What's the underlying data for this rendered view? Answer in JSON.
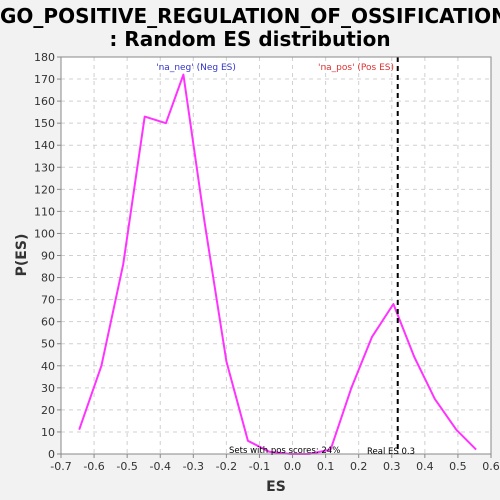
{
  "chart_data": {
    "type": "line",
    "title_line1": "GO_POSITIVE_REGULATION_OF_OSSIFICATION",
    "title_line2": ": Random ES distribution",
    "xlabel": "ES",
    "ylabel": "P(ES)",
    "xlim": [
      -0.7,
      0.6
    ],
    "ylim": [
      0,
      180
    ],
    "x_ticks": [
      "-0.7",
      "-0.6",
      "-0.5",
      "-0.4",
      "-0.3",
      "-0.2",
      "-0.1",
      "0.0",
      "0.1",
      "0.2",
      "0.3",
      "0.4",
      "0.5",
      "0.6"
    ],
    "y_ticks": [
      "0",
      "10",
      "20",
      "30",
      "40",
      "50",
      "60",
      "70",
      "80",
      "90",
      "100",
      "110",
      "120",
      "130",
      "140",
      "150",
      "160",
      "170",
      "180"
    ],
    "grid": true,
    "series": [
      {
        "color": "#ff33ff",
        "x": [
          -0.645,
          -0.578,
          -0.512,
          -0.447,
          -0.383,
          -0.33,
          -0.266,
          -0.2,
          -0.135,
          -0.07,
          -0.005,
          0.05,
          0.115,
          0.178,
          0.24,
          0.305,
          0.368,
          0.43,
          0.495,
          0.555
        ],
        "y": [
          11,
          40,
          86,
          153,
          150,
          172,
          105,
          42,
          6,
          1,
          0,
          0,
          2,
          30,
          53,
          68,
          44,
          25,
          11,
          2
        ]
      }
    ],
    "real_es": 0.318,
    "annotations": {
      "neg_label": "'na_neg' (Neg ES)",
      "pos_label": "'na_pos' (Pos ES)",
      "pos_scores": "Sets with pos scores: 24%",
      "real_es_label": "Real ES 0.3"
    },
    "colors": {
      "neg_label": "#3333cc",
      "pos_label": "#e03030",
      "line": "#ff33ff",
      "grid": "#d0d0d0"
    }
  }
}
